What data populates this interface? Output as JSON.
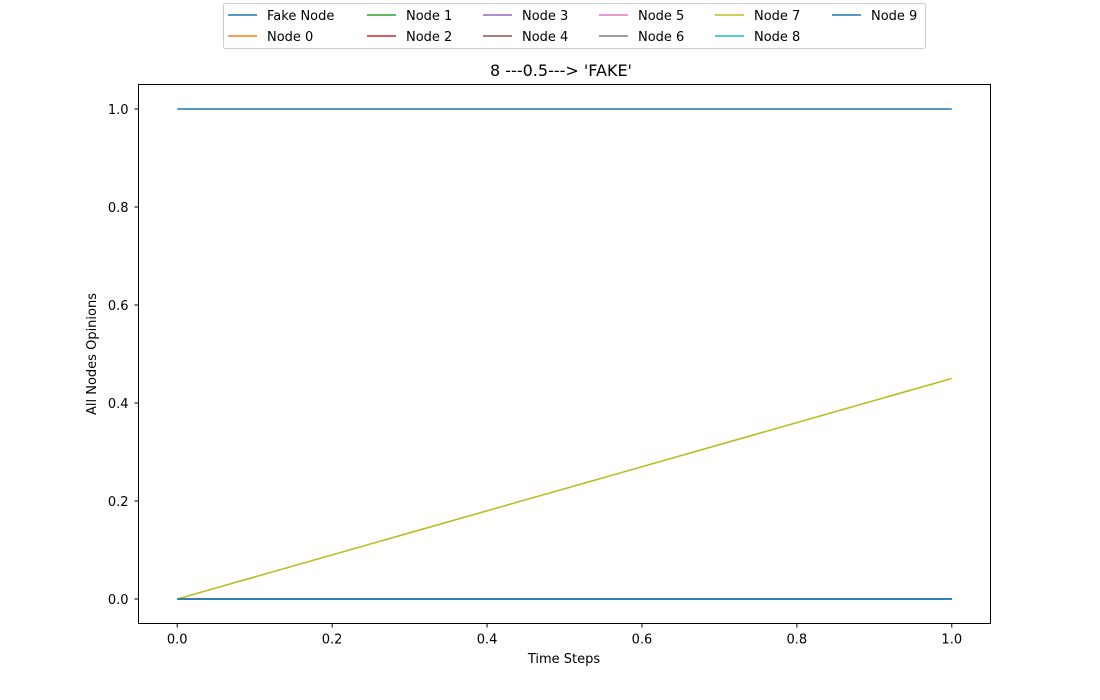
{
  "chart_data": {
    "type": "line",
    "title": "8 ---0.5---> 'FAKE'",
    "xlabel": "Time Steps",
    "ylabel": "All Nodes Opinions",
    "xlim": [
      -0.05,
      1.05
    ],
    "ylim": [
      -0.05,
      1.05
    ],
    "xticks": [
      0.0,
      0.2,
      0.4,
      0.6,
      0.8,
      1.0
    ],
    "yticks": [
      0.0,
      0.2,
      0.4,
      0.6,
      0.8,
      1.0
    ],
    "xtick_labels": [
      "0.0",
      "0.2",
      "0.4",
      "0.6",
      "0.8",
      "1.0"
    ],
    "ytick_labels": [
      "0.0",
      "0.2",
      "0.4",
      "0.6",
      "0.8",
      "1.0"
    ],
    "grid": false,
    "legend_placement": "top-center",
    "x": [
      0,
      1
    ],
    "series": [
      {
        "name": "Fake Node",
        "color": "#1f77b4",
        "values": [
          1.0,
          1.0
        ]
      },
      {
        "name": "Node 0",
        "color": "#ff7f0e",
        "values": [
          0.0,
          0.0
        ]
      },
      {
        "name": "Node 1",
        "color": "#2ca02c",
        "values": [
          0.0,
          0.0
        ]
      },
      {
        "name": "Node 2",
        "color": "#d62728",
        "values": [
          0.0,
          0.0
        ]
      },
      {
        "name": "Node 3",
        "color": "#9467bd",
        "values": [
          0.0,
          0.0
        ]
      },
      {
        "name": "Node 4",
        "color": "#8c564b",
        "values": [
          0.0,
          0.0
        ]
      },
      {
        "name": "Node 5",
        "color": "#e377c2",
        "values": [
          0.0,
          0.0
        ]
      },
      {
        "name": "Node 6",
        "color": "#7f7f7f",
        "values": [
          0.0,
          0.0
        ]
      },
      {
        "name": "Node 7",
        "color": "#bcbd22",
        "values": [
          0.0,
          0.45
        ]
      },
      {
        "name": "Node 8",
        "color": "#17becf",
        "values": [
          0.0,
          0.0
        ]
      },
      {
        "name": "Node 9",
        "color": "#1f77b4",
        "values": [
          0.0,
          0.0
        ]
      }
    ]
  }
}
